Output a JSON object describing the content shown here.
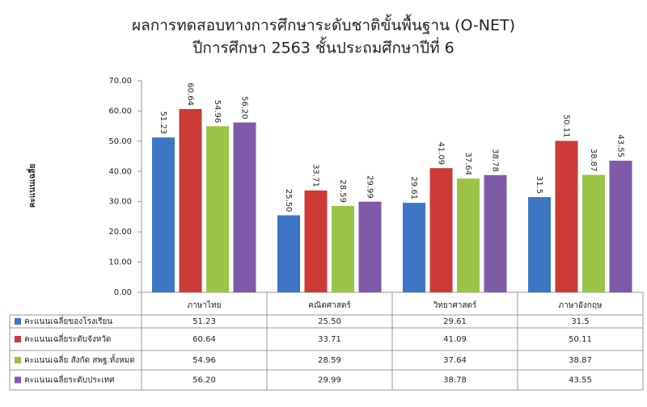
{
  "chart_data": {
    "type": "bar",
    "title": "ผลการทดสอบทางการศึกษาระดับชาติขั้นพื้นฐาน (O-NET)",
    "subtitle": "ปีการศึกษา 2563 ชั้นประถมศึกษาปีที่ 6",
    "y_label": "คะแนนเฉลี่ย",
    "categories": [
      "ภาษาไทย",
      "คณิตศาสตร์",
      "วิทยาศาสตร์",
      "ภาษาอังกฤษ"
    ],
    "series": [
      {
        "name": "คะแนนเฉลี่ยของโรงเรียน",
        "color": "#3d76c4",
        "values": [
          51.23,
          25.5,
          29.61,
          31.5
        ],
        "value_labels": [
          "51.23",
          "25.50",
          "29.61",
          "31.5"
        ]
      },
      {
        "name": "คะแนนเฉลี่ยระดับจังหวัด",
        "color": "#cc3a36",
        "values": [
          60.64,
          33.71,
          41.09,
          50.11
        ],
        "value_labels": [
          "60.64",
          "33.71",
          "41.09",
          "50.11"
        ]
      },
      {
        "name": "คะแนนเฉลี่ย สังกัด สพฐ.ทั้งหมด",
        "color": "#9bc447",
        "values": [
          54.96,
          28.59,
          37.64,
          38.87
        ],
        "value_labels": [
          "54.96",
          "28.59",
          "37.64",
          "38.87"
        ]
      },
      {
        "name": "คะแนนเฉลี่ยระดับประเทศ",
        "color": "#7f5aa8",
        "values": [
          56.2,
          29.99,
          38.78,
          43.55
        ],
        "value_labels": [
          "56.20",
          "29.99",
          "38.78",
          "43.55"
        ]
      }
    ],
    "ylim": [
      0,
      70
    ],
    "yticks": [
      {
        "value": 0,
        "label": "0.00"
      },
      {
        "value": 10,
        "label": "10.00"
      },
      {
        "value": 20,
        "label": "20.00"
      },
      {
        "value": 30,
        "label": "30.00"
      },
      {
        "value": 40,
        "label": "40.00"
      },
      {
        "value": 50,
        "label": "50.00"
      },
      {
        "value": 60,
        "label": "60.00"
      },
      {
        "value": 70,
        "label": "70.00"
      }
    ],
    "grid": false
  }
}
